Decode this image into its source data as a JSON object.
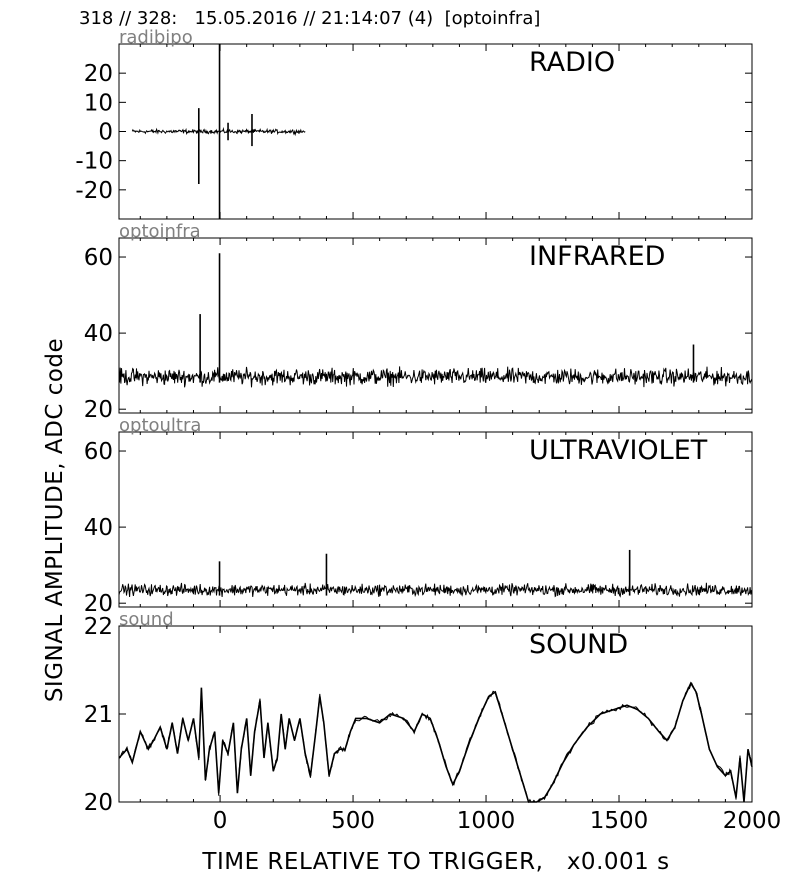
{
  "header": "318 // 328:   15.05.2016 // 21:14:07 (4)  [optoinfra]",
  "ylabel": "SIGNAL AMPLITUDE,  ADC code",
  "xlabel": "TIME RELATIVE TO TRIGGER,   x0.001 s",
  "chart_data": [
    {
      "type": "line",
      "channel": "radibipo",
      "title": "RADIO",
      "xlim": [
        -380,
        2000
      ],
      "ylim": [
        -30,
        30
      ],
      "yticks": [
        20,
        10,
        0,
        -10,
        -20
      ],
      "noise_center": 0,
      "noise_amp": 1,
      "data_xrange": [
        -330,
        320
      ],
      "spikes": [
        {
          "x": -80,
          "y0": -18,
          "y1": 8
        },
        {
          "x": -2,
          "y0": -30,
          "y1": 30
        },
        {
          "x": 120,
          "y0": -5,
          "y1": 6
        },
        {
          "x": 30,
          "y0": -3,
          "y1": 3
        }
      ]
    },
    {
      "type": "line",
      "channel": "optoinfra",
      "title": "INFRARED",
      "xlim": [
        -380,
        2000
      ],
      "ylim": [
        19,
        65
      ],
      "yticks": [
        60,
        40,
        20
      ],
      "noise_center": 28.5,
      "noise_amp": 3.2,
      "data_xrange": [
        -380,
        2000
      ],
      "spikes": [
        {
          "x": -75,
          "y0": 27,
          "y1": 45
        },
        {
          "x": -2,
          "y0": 27,
          "y1": 61
        },
        {
          "x": 1780,
          "y0": 27,
          "y1": 37
        }
      ]
    },
    {
      "type": "line",
      "channel": "optoultra",
      "title": "ULTRAVIOLET",
      "xlim": [
        -380,
        2000
      ],
      "ylim": [
        19,
        65
      ],
      "yticks": [
        60,
        40,
        20
      ],
      "noise_center": 23.5,
      "noise_amp": 2.2,
      "data_xrange": [
        -380,
        2000
      ],
      "spikes": [
        {
          "x": -2,
          "y0": 22,
          "y1": 31
        },
        {
          "x": 400,
          "y0": 22,
          "y1": 33
        },
        {
          "x": 1540,
          "y0": 22,
          "y1": 34
        }
      ]
    },
    {
      "type": "line",
      "channel": "sound",
      "title": "SOUND",
      "xlim": [
        -380,
        2000
      ],
      "ylim": [
        20,
        22
      ],
      "yticks": [
        22,
        21,
        20
      ],
      "points": [
        [
          -380,
          20.5
        ],
        [
          -350,
          20.6
        ],
        [
          -330,
          20.45
        ],
        [
          -300,
          20.8
        ],
        [
          -270,
          20.6
        ],
        [
          -250,
          20.7
        ],
        [
          -225,
          20.85
        ],
        [
          -200,
          20.6
        ],
        [
          -180,
          20.9
        ],
        [
          -160,
          20.55
        ],
        [
          -140,
          20.95
        ],
        [
          -120,
          20.7
        ],
        [
          -100,
          20.95
        ],
        [
          -80,
          20.5
        ],
        [
          -70,
          21.3
        ],
        [
          -55,
          20.25
        ],
        [
          -40,
          20.6
        ],
        [
          -20,
          20.8
        ],
        [
          -5,
          20.1
        ],
        [
          10,
          20.7
        ],
        [
          30,
          20.55
        ],
        [
          50,
          20.9
        ],
        [
          65,
          20.1
        ],
        [
          80,
          20.6
        ],
        [
          100,
          20.95
        ],
        [
          115,
          20.3
        ],
        [
          130,
          20.8
        ],
        [
          150,
          21.15
        ],
        [
          165,
          20.5
        ],
        [
          180,
          20.9
        ],
        [
          200,
          20.35
        ],
        [
          215,
          20.5
        ],
        [
          230,
          21.0
        ],
        [
          245,
          20.6
        ],
        [
          260,
          20.95
        ],
        [
          280,
          20.7
        ],
        [
          300,
          20.95
        ],
        [
          320,
          20.55
        ],
        [
          340,
          20.3
        ],
        [
          360,
          20.8
        ],
        [
          375,
          21.2
        ],
        [
          390,
          20.9
        ],
        [
          410,
          20.3
        ],
        [
          430,
          20.55
        ],
        [
          450,
          20.6
        ],
        [
          470,
          20.6
        ],
        [
          490,
          20.8
        ],
        [
          510,
          20.95
        ],
        [
          550,
          20.95
        ],
        [
          600,
          20.9
        ],
        [
          640,
          21.0
        ],
        [
          690,
          20.95
        ],
        [
          730,
          20.8
        ],
        [
          760,
          21.0
        ],
        [
          790,
          20.95
        ],
        [
          820,
          20.7
        ],
        [
          850,
          20.4
        ],
        [
          875,
          20.2
        ],
        [
          900,
          20.35
        ],
        [
          940,
          20.7
        ],
        [
          980,
          21.0
        ],
        [
          1010,
          21.2
        ],
        [
          1035,
          21.25
        ],
        [
          1060,
          21.0
        ],
        [
          1100,
          20.6
        ],
        [
          1140,
          20.2
        ],
        [
          1160,
          20.0
        ],
        [
          1190,
          20.0
        ],
        [
          1220,
          20.05
        ],
        [
          1250,
          20.2
        ],
        [
          1290,
          20.45
        ],
        [
          1330,
          20.65
        ],
        [
          1380,
          20.85
        ],
        [
          1430,
          21.0
        ],
        [
          1480,
          21.05
        ],
        [
          1530,
          21.1
        ],
        [
          1570,
          21.05
        ],
        [
          1610,
          20.95
        ],
        [
          1650,
          20.8
        ],
        [
          1680,
          20.7
        ],
        [
          1710,
          20.85
        ],
        [
          1740,
          21.15
        ],
        [
          1770,
          21.35
        ],
        [
          1790,
          21.25
        ],
        [
          1810,
          21.0
        ],
        [
          1840,
          20.6
        ],
        [
          1870,
          20.4
        ],
        [
          1900,
          20.3
        ],
        [
          1920,
          20.35
        ],
        [
          1940,
          20.05
        ],
        [
          1955,
          20.5
        ],
        [
          1970,
          20.0
        ],
        [
          1985,
          20.6
        ],
        [
          2000,
          20.4
        ]
      ]
    }
  ],
  "xaxis": {
    "ticks": [
      0,
      500,
      1000,
      1500,
      2000
    ]
  }
}
